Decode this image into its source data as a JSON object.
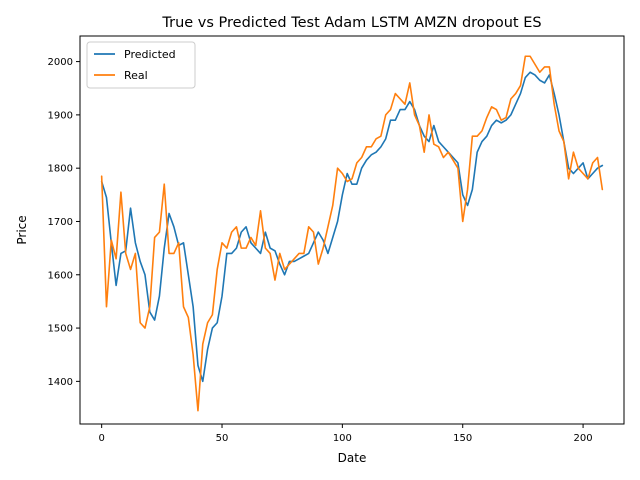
{
  "chart_data": {
    "type": "line",
    "title": "True vs Predicted Test  Adam LSTM AMZN dropout ES",
    "xlabel": "Date",
    "ylabel": "Price",
    "xlim": [
      -9,
      217
    ],
    "ylim": [
      1320,
      2048
    ],
    "xticks": [
      0,
      50,
      100,
      150,
      200
    ],
    "yticks": [
      1400,
      1500,
      1600,
      1700,
      1800,
      1900,
      2000
    ],
    "grid": false,
    "legend_position": "top-left",
    "series": [
      {
        "name": "Predicted",
        "color": "#1f77b4",
        "x": [
          0,
          2,
          4,
          6,
          8,
          10,
          12,
          14,
          16,
          18,
          20,
          22,
          24,
          26,
          28,
          30,
          32,
          34,
          36,
          38,
          40,
          42,
          44,
          46,
          48,
          50,
          52,
          54,
          56,
          58,
          60,
          62,
          64,
          66,
          68,
          70,
          72,
          74,
          76,
          78,
          80,
          82,
          84,
          86,
          88,
          90,
          92,
          94,
          96,
          98,
          100,
          102,
          104,
          106,
          108,
          110,
          112,
          114,
          116,
          118,
          120,
          122,
          124,
          126,
          128,
          130,
          132,
          134,
          136,
          138,
          140,
          142,
          144,
          146,
          148,
          150,
          152,
          154,
          156,
          158,
          160,
          162,
          164,
          166,
          168,
          170,
          172,
          174,
          176,
          178,
          180,
          182,
          184,
          186,
          188,
          190,
          192,
          194,
          196,
          198,
          200,
          202,
          204,
          206,
          208
        ],
        "values": [
          1775,
          1745,
          1660,
          1580,
          1640,
          1645,
          1725,
          1660,
          1625,
          1600,
          1530,
          1515,
          1560,
          1650,
          1715,
          1690,
          1655,
          1660,
          1600,
          1540,
          1430,
          1400,
          1460,
          1500,
          1510,
          1560,
          1640,
          1640,
          1650,
          1680,
          1690,
          1660,
          1650,
          1640,
          1680,
          1650,
          1645,
          1620,
          1600,
          1625,
          1625,
          1630,
          1635,
          1640,
          1660,
          1680,
          1665,
          1640,
          1670,
          1700,
          1750,
          1790,
          1770,
          1770,
          1800,
          1815,
          1825,
          1830,
          1840,
          1855,
          1890,
          1890,
          1910,
          1910,
          1925,
          1910,
          1880,
          1860,
          1850,
          1880,
          1850,
          1840,
          1830,
          1820,
          1810,
          1750,
          1730,
          1760,
          1830,
          1850,
          1860,
          1880,
          1890,
          1885,
          1890,
          1900,
          1920,
          1940,
          1970,
          1980,
          1975,
          1965,
          1960,
          1975,
          1940,
          1900,
          1850,
          1800,
          1790,
          1800,
          1810,
          1780,
          1790,
          1800,
          1805
        ]
      },
      {
        "name": "Real",
        "color": "#ff7f0e",
        "x": [
          0,
          2,
          4,
          6,
          8,
          10,
          12,
          14,
          16,
          18,
          20,
          22,
          24,
          26,
          28,
          30,
          32,
          34,
          36,
          38,
          40,
          42,
          44,
          46,
          48,
          50,
          52,
          54,
          56,
          58,
          60,
          62,
          64,
          66,
          68,
          70,
          72,
          74,
          76,
          78,
          80,
          82,
          84,
          86,
          88,
          90,
          92,
          94,
          96,
          98,
          100,
          102,
          104,
          106,
          108,
          110,
          112,
          114,
          116,
          118,
          120,
          122,
          124,
          126,
          128,
          130,
          132,
          134,
          136,
          138,
          140,
          142,
          144,
          146,
          148,
          150,
          152,
          154,
          156,
          158,
          160,
          162,
          164,
          166,
          168,
          170,
          172,
          174,
          176,
          178,
          180,
          182,
          184,
          186,
          188,
          190,
          192,
          194,
          196,
          198,
          200,
          202,
          204,
          206,
          208
        ],
        "values": [
          1785,
          1540,
          1665,
          1630,
          1755,
          1640,
          1610,
          1640,
          1510,
          1500,
          1540,
          1670,
          1680,
          1770,
          1640,
          1640,
          1660,
          1540,
          1520,
          1450,
          1345,
          1470,
          1510,
          1525,
          1610,
          1660,
          1650,
          1680,
          1690,
          1650,
          1650,
          1670,
          1655,
          1720,
          1650,
          1640,
          1590,
          1640,
          1610,
          1620,
          1630,
          1640,
          1640,
          1690,
          1680,
          1620,
          1650,
          1690,
          1730,
          1800,
          1790,
          1775,
          1780,
          1810,
          1820,
          1840,
          1840,
          1855,
          1860,
          1900,
          1910,
          1940,
          1930,
          1920,
          1960,
          1900,
          1880,
          1830,
          1900,
          1845,
          1840,
          1820,
          1830,
          1815,
          1800,
          1700,
          1760,
          1860,
          1860,
          1870,
          1895,
          1915,
          1910,
          1890,
          1895,
          1930,
          1940,
          1955,
          2010,
          2010,
          1995,
          1980,
          1990,
          1990,
          1920,
          1870,
          1850,
          1780,
          1830,
          1800,
          1790,
          1780,
          1810,
          1820,
          1760
        ]
      }
    ]
  }
}
